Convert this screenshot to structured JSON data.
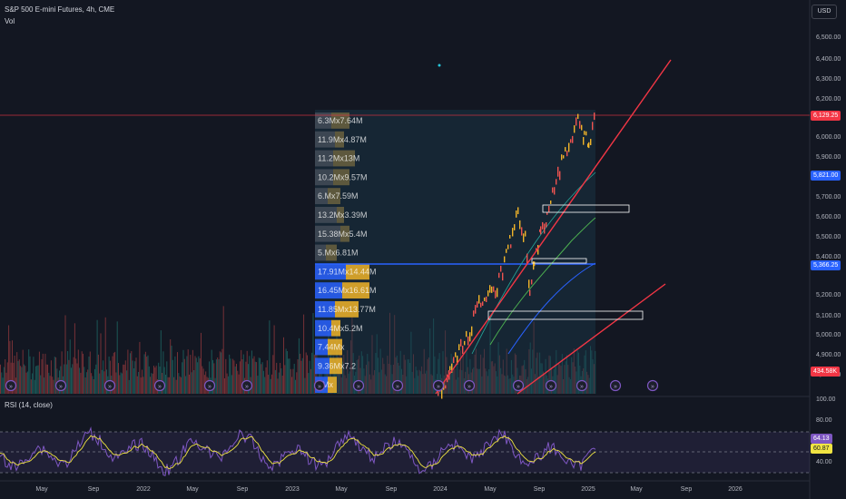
{
  "header": {
    "symbol_title": "S&P 500 E-mini Futures, 4h, CME",
    "volume_label": "Vol",
    "currency_button": "USD"
  },
  "price_axis": {
    "ticks": [
      "6,500.00",
      "6,400.00",
      "6,300.00",
      "6,200.00",
      "6,000.00",
      "5,900.00",
      "5,700.00",
      "5,600.00",
      "5,500.00",
      "5,400.00",
      "5,200.00",
      "5,100.00",
      "5,000.00",
      "4,900.00",
      "4,800.00"
    ],
    "badges": {
      "last_price": "6,129.25",
      "blue_level": "5,821.00",
      "poc_level": "5,366.25",
      "volume": "434.58K"
    },
    "colors": {
      "last_price": "#f23645",
      "blue_level": "#2962ff",
      "volume": "#f23645",
      "rsi_line": "#7e57c2",
      "rsi_ma": "#f0e442"
    }
  },
  "volume_profile_rows": [
    "6.3Mx7.64M",
    "11.9Mx4.87M",
    "11.2Mx13M",
    "10.2Mx9.57M",
    "6.Mx7.59M",
    "13.2Mx3.39M",
    "15.38Mx5.4M",
    "5.Mx6.81M",
    "17.91Mx14.44M",
    "16.45Mx16.61M",
    "11.85Mx13.77M",
    "10.4Mx5.2M",
    "7.44Mx",
    "9.36Mx7.2",
    "8Mx"
  ],
  "rsi": {
    "title": "RSI (14, close)",
    "ticks": [
      "100.00",
      "80.00",
      "40.00"
    ],
    "value_badge": "64.13",
    "ma_badge": "60.87"
  },
  "time_axis": [
    "May",
    "Sep",
    "2022",
    "May",
    "Sep",
    "2023",
    "May",
    "Sep",
    "2024",
    "May",
    "Sep",
    "2025",
    "May",
    "Sep",
    "2026"
  ]
}
